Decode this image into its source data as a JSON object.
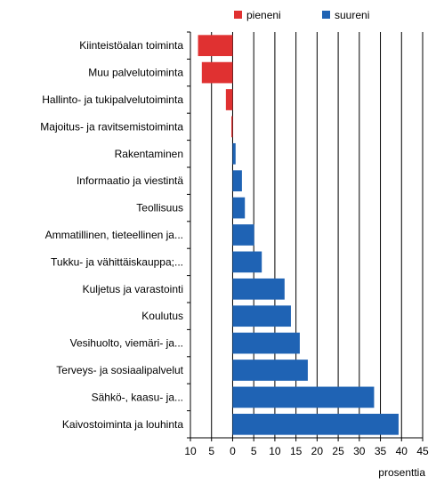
{
  "chart_data": {
    "type": "bar",
    "orientation": "horizontal",
    "xlabel": "prosenttia",
    "xlim": [
      -10,
      45
    ],
    "xticks": [
      -10,
      -5,
      0,
      5,
      10,
      15,
      20,
      25,
      30,
      35,
      40,
      45
    ],
    "xtick_labels": [
      "10",
      "5",
      "0",
      "5",
      "10",
      "15",
      "20",
      "25",
      "30",
      "35",
      "40",
      "45"
    ],
    "grid": "vertical",
    "legend_position": "top",
    "series": [
      {
        "name": "pieneni",
        "color": "#e03131"
      },
      {
        "name": "suureni",
        "color": "#1f63b4"
      }
    ],
    "categories": [
      "Kiinteistöalan toiminta",
      "Muu palvelutoiminta",
      "Hallinto- ja tukipalvelutoiminta",
      "Majoitus- ja ravitsemistoiminta",
      "Rakentaminen",
      "Informaatio ja viestintä",
      "Teollisuus",
      "Ammatillinen, tieteellinen ja...",
      "Tukku- ja vähittäiskauppa;...",
      "Kuljetus ja varastointi",
      "Koulutus",
      "Vesihuolto, viemäri- ja...",
      "Terveys- ja sosiaalipalvelut",
      "Sähkö-, kaasu- ja...",
      "Kaivostoiminta ja louhinta"
    ],
    "values": [
      -8.2,
      -7.3,
      -1.6,
      -0.3,
      0.7,
      2.2,
      2.9,
      5.1,
      6.9,
      12.3,
      13.8,
      15.9,
      17.8,
      33.5,
      39.3
    ]
  }
}
